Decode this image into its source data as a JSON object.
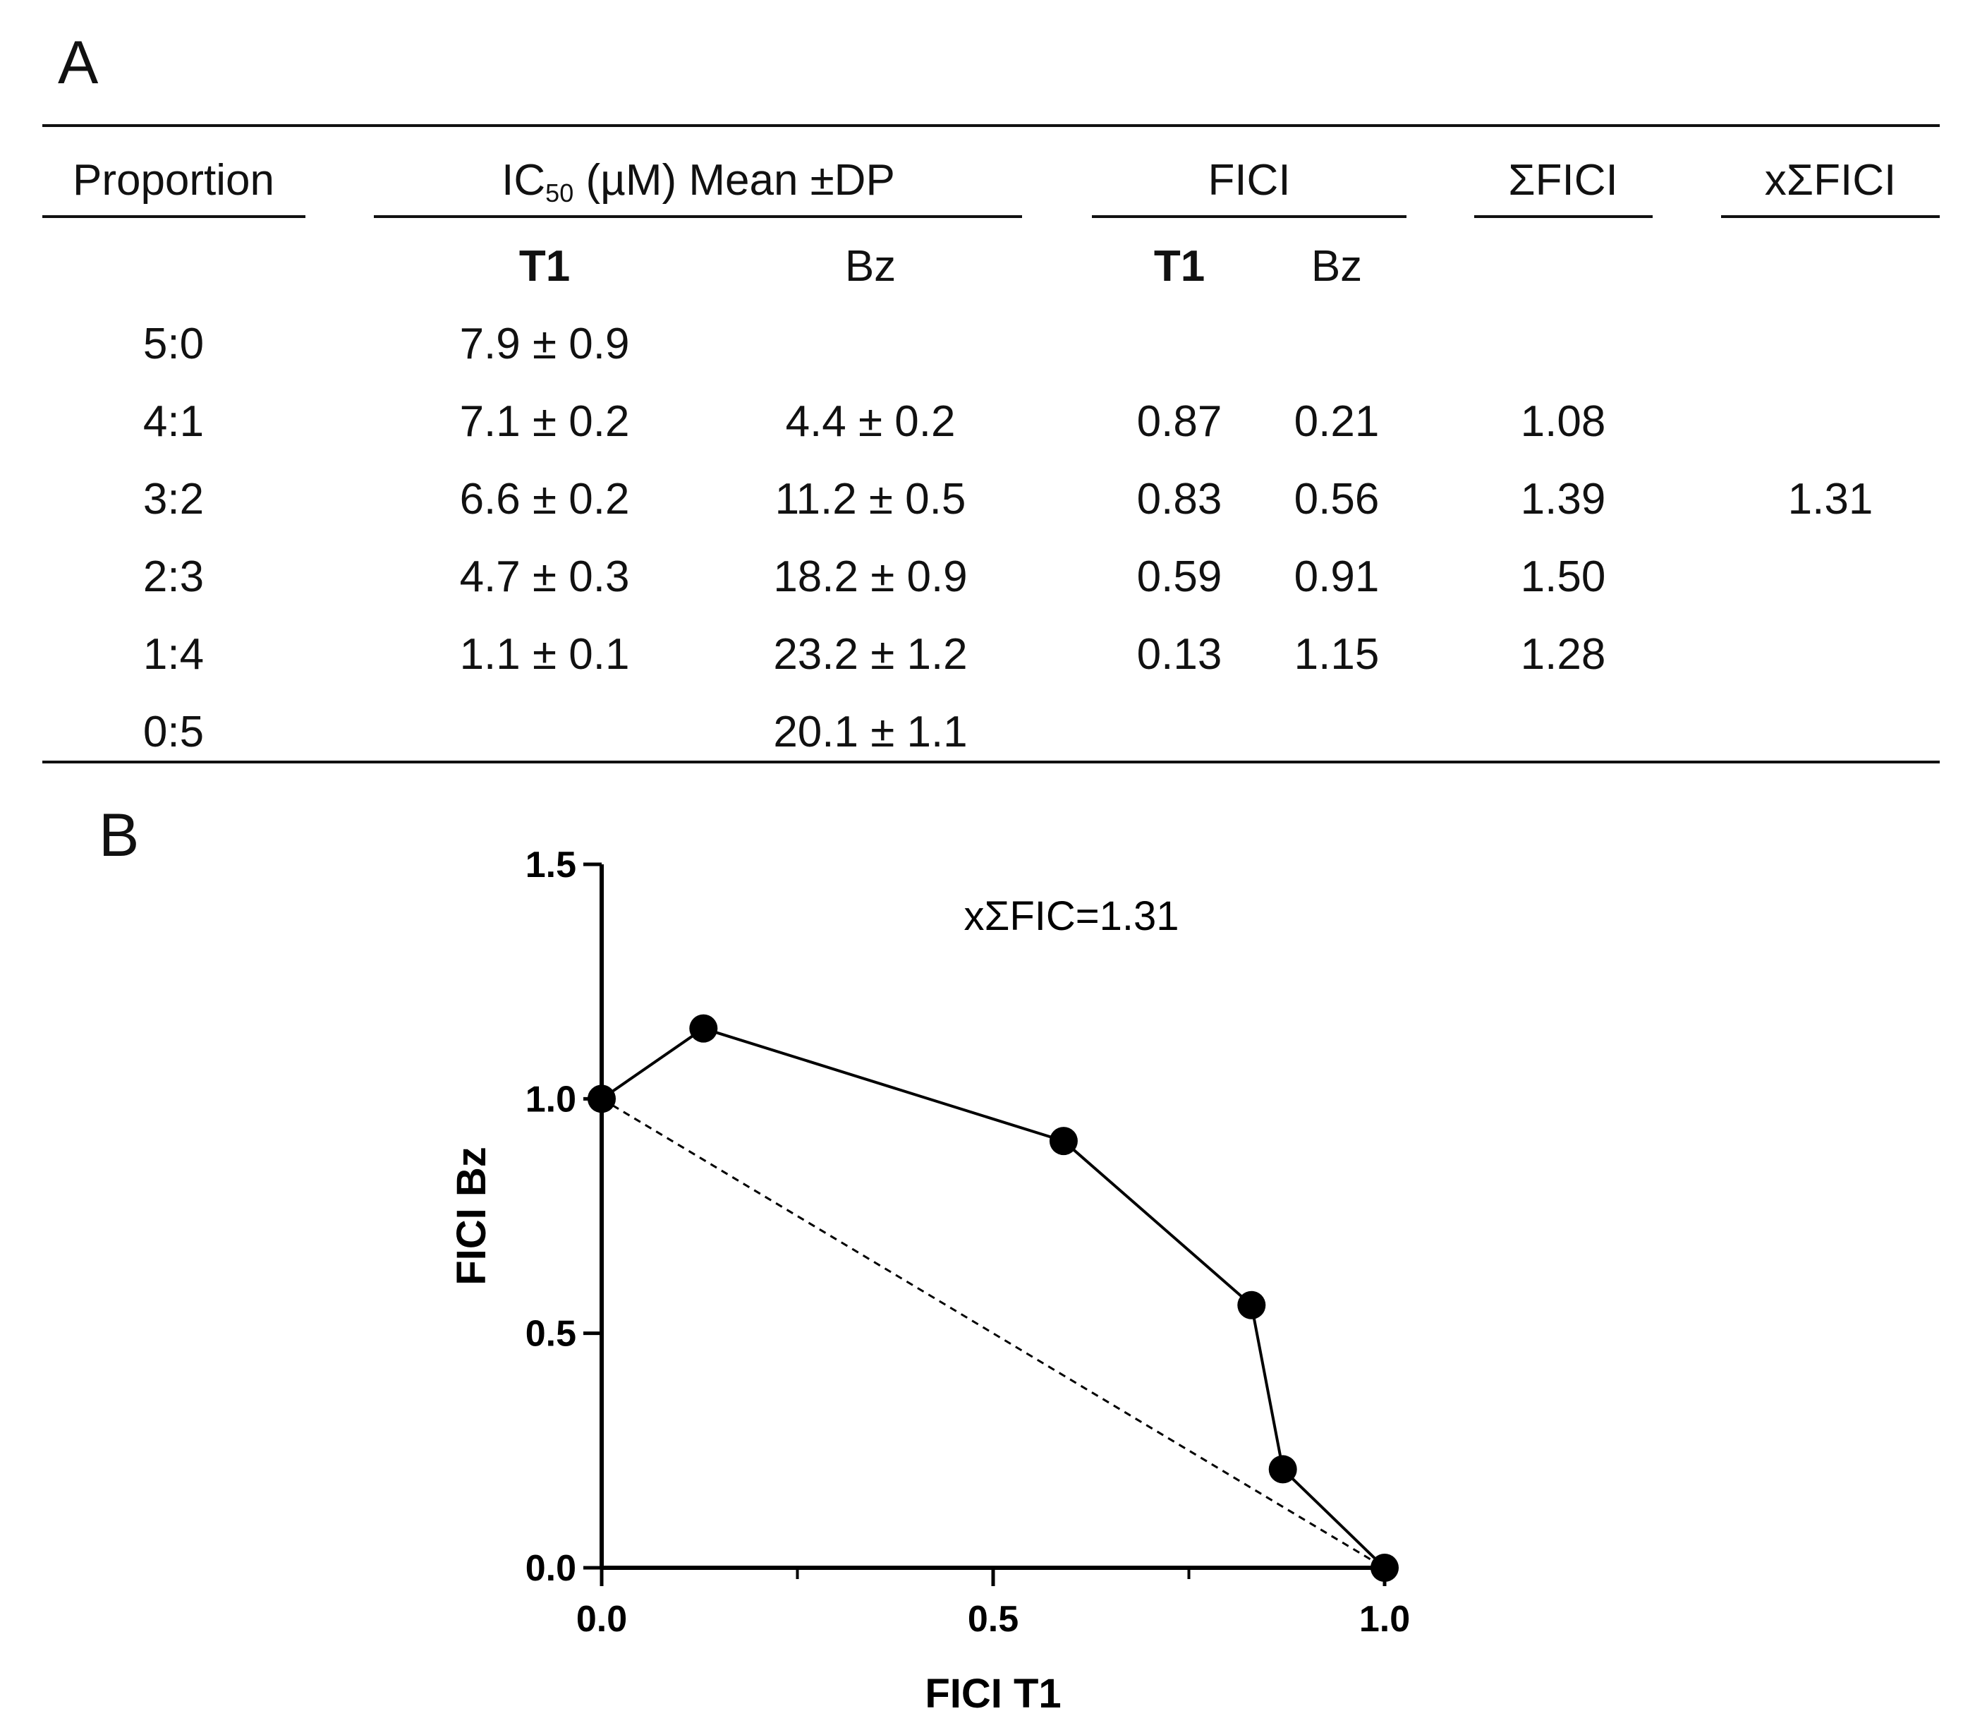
{
  "panel_a_label": "A",
  "panel_b_label": "B",
  "table": {
    "headers": {
      "proportion": "Proportion",
      "ic50_prefix": "IC",
      "ic50_sub": "50",
      "ic50_suffix": " (µM) Mean ±DP",
      "fici": "FICI",
      "sum_fici": "ΣFICI",
      "x_sum_fici": "xΣFICI"
    },
    "subheaders": {
      "ic50_t1": "T1",
      "ic50_bz": "Bz",
      "fici_t1": "T1",
      "fici_bz": "Bz"
    },
    "rows": [
      {
        "proportion": "5:0",
        "ic50_t1": "7.9 ± 0.9",
        "ic50_bz": "",
        "fici_t1": "",
        "fici_bz": "",
        "sum_fici": "",
        "x_sum_fici": ""
      },
      {
        "proportion": "4:1",
        "ic50_t1": "7.1 ± 0.2",
        "ic50_bz": "4.4 ± 0.2",
        "fici_t1": "0.87",
        "fici_bz": "0.21",
        "sum_fici": "1.08",
        "x_sum_fici": ""
      },
      {
        "proportion": "3:2",
        "ic50_t1": "6.6 ± 0.2",
        "ic50_bz": "11.2 ± 0.5",
        "fici_t1": "0.83",
        "fici_bz": "0.56",
        "sum_fici": "1.39",
        "x_sum_fici": "1.31"
      },
      {
        "proportion": "2:3",
        "ic50_t1": "4.7 ± 0.3",
        "ic50_bz": "18.2 ± 0.9",
        "fici_t1": "0.59",
        "fici_bz": "0.91",
        "sum_fici": "1.50",
        "x_sum_fici": ""
      },
      {
        "proportion": "1:4",
        "ic50_t1": "1.1 ± 0.1",
        "ic50_bz": "23.2 ± 1.2",
        "fici_t1": "0.13",
        "fici_bz": "1.15",
        "sum_fici": "1.28",
        "x_sum_fici": ""
      },
      {
        "proportion": "0:5",
        "ic50_t1": "",
        "ic50_bz": "20.1 ± 1.1",
        "fici_t1": "",
        "fici_bz": "",
        "sum_fici": "",
        "x_sum_fici": ""
      }
    ]
  },
  "chart_data": {
    "type": "line",
    "xlabel": "FICI T1",
    "ylabel": "FICI Bz",
    "annotation": "xΣFIC=1.31",
    "xlim": [
      0,
      1
    ],
    "ylim": [
      0,
      1.5
    ],
    "x_ticks": [
      "0.0",
      "0.5",
      "1.0"
    ],
    "y_ticks": [
      "0.0",
      "0.5",
      "1.0",
      "1.5"
    ],
    "x_tick_values": [
      0,
      0.5,
      1
    ],
    "y_tick_values": [
      0,
      0.5,
      1,
      1.5
    ],
    "x_minor_tick_values": [
      0.25,
      0.75
    ],
    "series": [
      {
        "name": "isobologram",
        "style": "solid-with-markers",
        "points": [
          {
            "x": 0.0,
            "y": 1.0
          },
          {
            "x": 0.13,
            "y": 1.15
          },
          {
            "x": 0.59,
            "y": 0.91
          },
          {
            "x": 0.83,
            "y": 0.56
          },
          {
            "x": 0.87,
            "y": 0.21
          },
          {
            "x": 1.0,
            "y": 0.0
          }
        ]
      },
      {
        "name": "additivity line",
        "style": "dashed",
        "points": [
          {
            "x": 0.0,
            "y": 1.0
          },
          {
            "x": 1.0,
            "y": 0.0
          }
        ]
      }
    ]
  }
}
